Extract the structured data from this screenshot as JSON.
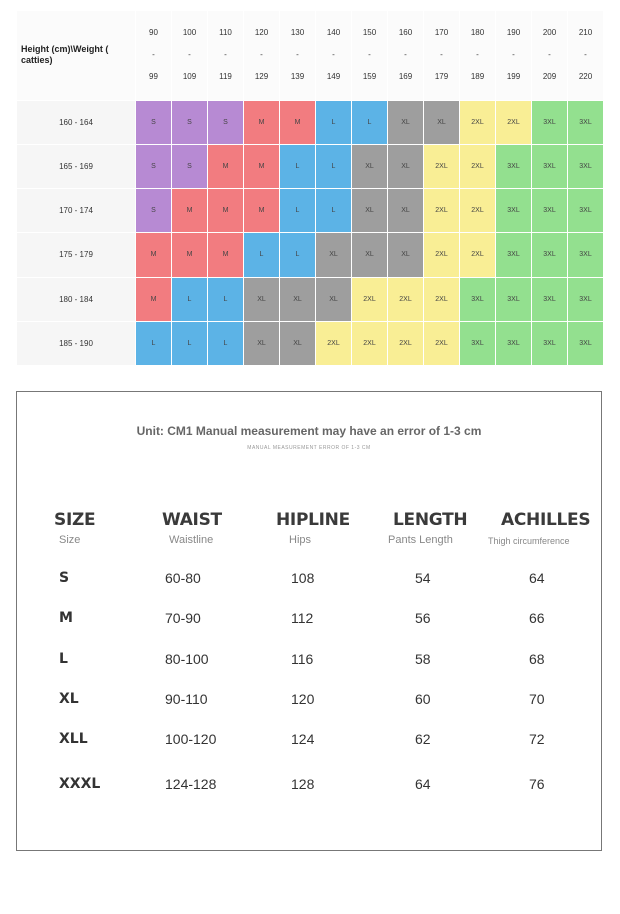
{
  "size_grid": {
    "corner_label": "Height (cm)\\Weight ( catties)",
    "weights": [
      {
        "from": "90",
        "dash": "-",
        "to": "99"
      },
      {
        "from": "100",
        "dash": "-",
        "to": "109"
      },
      {
        "from": "110",
        "dash": "-",
        "to": "119"
      },
      {
        "from": "120",
        "dash": "-",
        "to": "129"
      },
      {
        "from": "130",
        "dash": "-",
        "to": "139"
      },
      {
        "from": "140",
        "dash": "-",
        "to": "149"
      },
      {
        "from": "150",
        "dash": "-",
        "to": "159"
      },
      {
        "from": "160",
        "dash": "-",
        "to": "169"
      },
      {
        "from": "170",
        "dash": "-",
        "to": "179"
      },
      {
        "from": "180",
        "dash": "-",
        "to": "189"
      },
      {
        "from": "190",
        "dash": "-",
        "to": "199"
      },
      {
        "from": "200",
        "dash": "-",
        "to": "209"
      },
      {
        "from": "210",
        "dash": "-",
        "to": "220"
      }
    ],
    "rows": [
      {
        "height": "160 - 164",
        "sizes": [
          "S",
          "S",
          "S",
          "M",
          "M",
          "L",
          "L",
          "XL",
          "XL",
          "2XL",
          "2XL",
          "3XL",
          "3XL"
        ]
      },
      {
        "height": "165 - 169",
        "sizes": [
          "S",
          "S",
          "M",
          "M",
          "L",
          "L",
          "XL",
          "XL",
          "2XL",
          "2XL",
          "3XL",
          "3XL",
          "3XL"
        ]
      },
      {
        "height": "170 - 174",
        "sizes": [
          "S",
          "M",
          "M",
          "M",
          "L",
          "L",
          "XL",
          "XL",
          "2XL",
          "2XL",
          "3XL",
          "3XL",
          "3XL"
        ]
      },
      {
        "height": "175 - 179",
        "sizes": [
          "M",
          "M",
          "M",
          "L",
          "L",
          "XL",
          "XL",
          "XL",
          "2XL",
          "2XL",
          "3XL",
          "3XL",
          "3XL"
        ]
      },
      {
        "height": "180 - 184",
        "sizes": [
          "M",
          "L",
          "L",
          "XL",
          "XL",
          "XL",
          "2XL",
          "2XL",
          "2XL",
          "3XL",
          "3XL",
          "3XL",
          "3XL"
        ]
      },
      {
        "height": "185 - 190",
        "sizes": [
          "L",
          "L",
          "L",
          "XL",
          "XL",
          "2XL",
          "2XL",
          "2XL",
          "2XL",
          "3XL",
          "3XL",
          "3XL",
          "3XL"
        ]
      }
    ],
    "size_colors": {
      "S": "#b78ad3",
      "M": "#f27c80",
      "L": "#5cb3e6",
      "XL": "#9e9e9e",
      "2XL": "#f9ee95",
      "3XL": "#93e08f"
    }
  },
  "measurements": {
    "unit_note": "Unit: CM1 Manual measurement may have an error of 1-3 cm",
    "sub_note": "MANUAL MEASUREMENT ERROR OF 1-3 CM",
    "columns": [
      {
        "title": "SIZE",
        "subtitle": "Size"
      },
      {
        "title": "WAIST",
        "subtitle": "Waistline"
      },
      {
        "title": "HIPLINE",
        "subtitle": "Hips"
      },
      {
        "title": "LENGTH",
        "subtitle": "Pants Length"
      },
      {
        "title": "ACHILLES",
        "subtitle": "Thigh circumference"
      }
    ],
    "rows": [
      {
        "size": "S",
        "waist": "60-80",
        "hipline": "108",
        "length": "54",
        "achilles": "64"
      },
      {
        "size": "M",
        "waist": "70-90",
        "hipline": "112",
        "length": "56",
        "achilles": "66"
      },
      {
        "size": "L",
        "waist": "80-100",
        "hipline": "116",
        "length": "58",
        "achilles": "68"
      },
      {
        "size": "XL",
        "waist": "90-110",
        "hipline": "120",
        "length": "60",
        "achilles": "70"
      },
      {
        "size": "XLL",
        "waist": "100-120",
        "hipline": "124",
        "length": "62",
        "achilles": "72"
      },
      {
        "size": "XXXL",
        "waist": "124-128",
        "hipline": "128",
        "length": "64",
        "achilles": "76"
      }
    ]
  }
}
